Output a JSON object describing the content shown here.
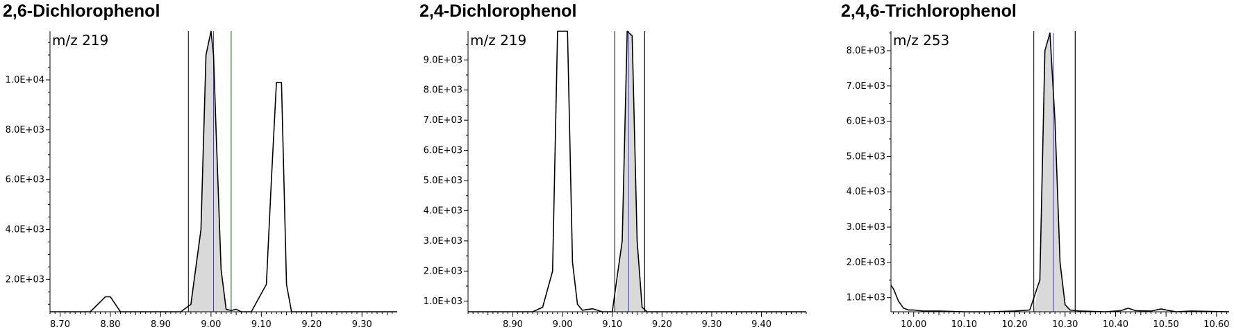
{
  "chart_data": [
    {
      "type": "line",
      "title": "2,6-Dichlorophenol",
      "annotation": "m/z 219",
      "xlim": [
        8.68,
        9.37
      ],
      "ylim": [
        700,
        11950
      ],
      "x_ticks": [
        8.7,
        8.8,
        8.9,
        9.0,
        9.1,
        9.2,
        9.3
      ],
      "x_tick_labels": [
        "8.70",
        "8.80",
        "8.90",
        "9.00",
        "9.10",
        "9.20",
        "9.30"
      ],
      "y_ticks": [
        2000,
        4000,
        6000,
        8000,
        10000
      ],
      "y_tick_labels": [
        "2.0E+03",
        "4.0E+03",
        "6.0E+03",
        "8.0E+03",
        "1.0E+04"
      ],
      "trace": {
        "x": [
          8.68,
          8.76,
          8.78,
          8.79,
          8.8,
          8.81,
          8.82,
          8.94,
          8.96,
          8.98,
          8.99,
          9.0,
          9.005,
          9.01,
          9.02,
          9.03,
          9.04,
          9.05,
          9.06,
          9.08,
          9.11,
          9.12,
          9.13,
          9.14,
          9.15,
          9.16,
          9.37
        ],
        "y": [
          700,
          700,
          1100,
          1300,
          1300,
          1000,
          700,
          700,
          1000,
          4000,
          11000,
          12000,
          11000,
          8000,
          2400,
          800,
          750,
          800,
          700,
          700,
          1800,
          6000,
          9900,
          9900,
          1800,
          700,
          700
        ]
      },
      "integrated_peak": {
        "x": [
          8.955,
          8.96,
          8.98,
          8.99,
          9.0,
          9.005,
          9.01,
          9.02,
          9.03,
          9.04
        ],
        "y": [
          700,
          1000,
          4000,
          11000,
          12000,
          11000,
          8000,
          2400,
          800,
          700
        ]
      },
      "markers": {
        "integration_start": 8.955,
        "integration_end": 9.04,
        "retention_time": 9.005
      },
      "colors": {
        "trace": "#000000",
        "fill": "#d9d9d9",
        "rt_line": "#3a3ad0",
        "end_line": "#2e7d32"
      }
    },
    {
      "type": "line",
      "title": "2,4-Dichlorophenol",
      "annotation": "m/z 219",
      "xlim": [
        8.81,
        9.49
      ],
      "ylim": [
        650,
        9950
      ],
      "x_ticks": [
        8.9,
        9.0,
        9.1,
        9.2,
        9.3,
        9.4
      ],
      "x_tick_labels": [
        "8.90",
        "9.00",
        "9.10",
        "9.20",
        "9.30",
        "9.40"
      ],
      "y_ticks": [
        1000,
        2000,
        3000,
        4000,
        5000,
        6000,
        7000,
        8000,
        9000
      ],
      "y_tick_labels": [
        "1.0E+03",
        "2.0E+03",
        "3.0E+03",
        "4.0E+03",
        "5.0E+03",
        "6.0E+03",
        "7.0E+03",
        "8.0E+03",
        "9.0E+03"
      ],
      "trace": {
        "x": [
          8.81,
          8.94,
          8.96,
          8.98,
          8.99,
          9.0,
          9.01,
          9.02,
          9.03,
          9.04,
          9.06,
          9.08,
          9.1,
          9.12,
          9.13,
          9.14,
          9.15,
          9.16,
          9.17,
          9.49
        ],
        "y": [
          650,
          650,
          800,
          2000,
          10000,
          10000,
          10000,
          2300,
          900,
          700,
          750,
          650,
          650,
          3000,
          10000,
          9800,
          3000,
          800,
          650,
          650
        ]
      },
      "integrated_peak": {
        "x": [
          9.105,
          9.12,
          9.13,
          9.14,
          9.15,
          9.16,
          9.165
        ],
        "y": [
          650,
          3000,
          10000,
          9800,
          3000,
          800,
          650
        ]
      },
      "markers": {
        "integration_start": 9.105,
        "integration_end": 9.165,
        "retention_time": 9.133
      },
      "colors": {
        "trace": "#000000",
        "fill": "#d9d9d9",
        "rt_line": "#3a3ad0",
        "end_line": "#000000"
      }
    },
    {
      "type": "line",
      "title": "2,4,6-Trichlorophenol",
      "annotation": "m/z 253",
      "xlim": [
        9.955,
        10.625
      ],
      "ylim": [
        600,
        8550
      ],
      "x_ticks": [
        10.0,
        10.1,
        10.2,
        10.3,
        10.4,
        10.5,
        10.6
      ],
      "x_tick_labels": [
        "10.00",
        "10.10",
        "10.20",
        "10.30",
        "10.40",
        "10.50",
        "10.60"
      ],
      "y_ticks": [
        1000,
        2000,
        3000,
        4000,
        5000,
        6000,
        7000,
        8000
      ],
      "y_tick_labels": [
        "1.0E+03",
        "2.0E+03",
        "3.0E+03",
        "4.0E+03",
        "5.0E+03",
        "6.0E+03",
        "7.0E+03",
        "8.0E+03"
      ],
      "trace": {
        "x": [
          9.955,
          9.96,
          9.97,
          9.98,
          9.99,
          10.0,
          10.02,
          10.05,
          10.1,
          10.15,
          10.2,
          10.23,
          10.25,
          10.26,
          10.27,
          10.28,
          10.29,
          10.3,
          10.31,
          10.33,
          10.38,
          10.41,
          10.425,
          10.44,
          10.47,
          10.49,
          10.5,
          10.52,
          10.55,
          10.625
        ],
        "y": [
          1350,
          1250,
          900,
          700,
          650,
          650,
          620,
          620,
          600,
          600,
          620,
          650,
          1500,
          8000,
          8500,
          6000,
          2000,
          800,
          650,
          620,
          600,
          630,
          700,
          630,
          620,
          680,
          650,
          600,
          620,
          600
        ]
      },
      "integrated_peak": {
        "x": [
          10.238,
          10.25,
          10.26,
          10.27,
          10.28,
          10.29,
          10.3,
          10.31,
          10.32
        ],
        "y": [
          630,
          1500,
          8000,
          8500,
          6000,
          2000,
          800,
          650,
          630
        ]
      },
      "markers": {
        "integration_start": 10.238,
        "integration_end": 10.32,
        "retention_time": 10.277
      },
      "colors": {
        "trace": "#000000",
        "fill": "#d9d9d9",
        "rt_line": "#3a3ad0",
        "end_line": "#000000"
      }
    }
  ]
}
